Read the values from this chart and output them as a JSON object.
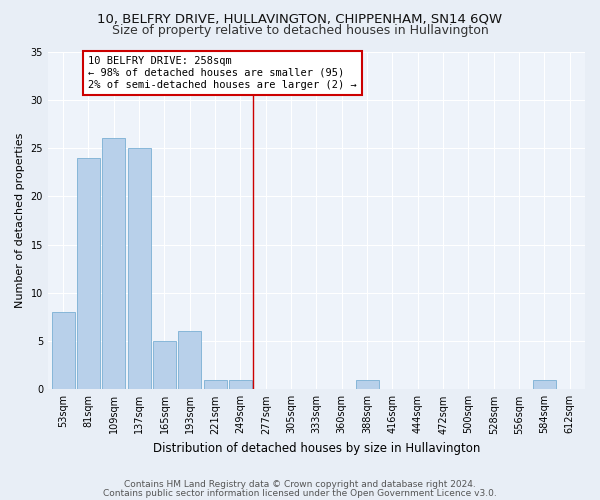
{
  "title1": "10, BELFRY DRIVE, HULLAVINGTON, CHIPPENHAM, SN14 6QW",
  "title2": "Size of property relative to detached houses in Hullavington",
  "xlabel": "Distribution of detached houses by size in Hullavington",
  "ylabel": "Number of detached properties",
  "categories": [
    "53sqm",
    "81sqm",
    "109sqm",
    "137sqm",
    "165sqm",
    "193sqm",
    "221sqm",
    "249sqm",
    "277sqm",
    "305sqm",
    "333sqm",
    "360sqm",
    "388sqm",
    "416sqm",
    "444sqm",
    "472sqm",
    "500sqm",
    "528sqm",
    "556sqm",
    "584sqm",
    "612sqm"
  ],
  "values": [
    8,
    24,
    26,
    25,
    5,
    6,
    1,
    1,
    0,
    0,
    0,
    0,
    1,
    0,
    0,
    0,
    0,
    0,
    0,
    1,
    0
  ],
  "bar_color": "#b8d0ea",
  "bar_edge_color": "#7aafd4",
  "ylim": [
    0,
    35
  ],
  "yticks": [
    0,
    5,
    10,
    15,
    20,
    25,
    30,
    35
  ],
  "vline_x": 7.5,
  "annotation_text": "10 BELFRY DRIVE: 258sqm\n← 98% of detached houses are smaller (95)\n2% of semi-detached houses are larger (2) →",
  "annotation_box_color": "#ffffff",
  "annotation_box_edge": "#cc0000",
  "vline_color": "#cc0000",
  "footer1": "Contains HM Land Registry data © Crown copyright and database right 2024.",
  "footer2": "Contains public sector information licensed under the Open Government Licence v3.0.",
  "bg_color": "#e8eef6",
  "plot_bg_color": "#eef3fa",
  "title1_fontsize": 9.5,
  "title2_fontsize": 9,
  "xlabel_fontsize": 8.5,
  "ylabel_fontsize": 8,
  "tick_fontsize": 7,
  "annotation_fontsize": 7.5,
  "footer_fontsize": 6.5
}
